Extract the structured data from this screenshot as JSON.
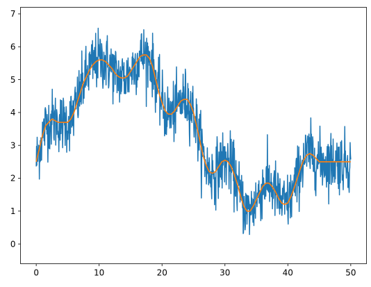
{
  "chart_data": {
    "type": "line",
    "title": "",
    "xlabel": "",
    "ylabel": "",
    "xlim": [
      -2.5,
      52.5
    ],
    "ylim": [
      -0.6,
      7.2
    ],
    "x_ticks": [
      0,
      10,
      20,
      30,
      40,
      50
    ],
    "y_ticks": [
      0,
      1,
      2,
      3,
      4,
      5,
      6,
      7
    ],
    "x_tick_labels": [
      "0",
      "10",
      "20",
      "30",
      "40",
      "50"
    ],
    "y_tick_labels": [
      "0",
      "1",
      "2",
      "3",
      "4",
      "5",
      "6",
      "7"
    ],
    "grid": false,
    "legend": "none",
    "series": [
      {
        "color": "#1f77b4",
        "style": "noisy",
        "x": [
          0,
          0.5,
          1,
          1.5,
          2,
          2.5,
          3,
          3.5,
          4,
          4.5,
          5,
          5.5,
          6,
          6.5,
          7,
          7.5,
          8,
          8.5,
          9,
          9.5,
          10,
          10.5,
          11,
          11.5,
          12,
          12.5,
          13,
          13.5,
          14,
          14.5,
          15,
          15.5,
          16,
          16.5,
          17,
          17.5,
          18,
          18.5,
          19,
          19.5,
          20,
          20.5,
          21,
          21.5,
          22,
          22.5,
          23,
          23.5,
          24,
          24.5,
          25,
          25.5,
          26,
          26.5,
          27,
          27.5,
          28,
          28.5,
          29,
          29.5,
          30,
          30.5,
          31,
          31.5,
          32,
          32.5,
          33,
          33.5,
          34,
          34.5,
          35,
          35.5,
          36,
          36.5,
          37,
          37.5,
          38,
          38.5,
          39,
          39.5,
          40,
          40.5,
          41,
          41.5,
          42,
          42.5,
          43,
          43.5,
          44,
          44.5,
          45,
          45.5,
          46,
          46.5,
          47,
          47.5,
          48,
          48.5,
          49,
          49.5,
          50
        ],
        "y": [
          2.5,
          2.9,
          3.3,
          3.6,
          3.7,
          3.8,
          3.75,
          3.7,
          3.7,
          3.7,
          3.7,
          3.8,
          4.0,
          4.3,
          4.6,
          4.9,
          5.1,
          5.3,
          5.45,
          5.55,
          5.6,
          5.6,
          5.55,
          5.45,
          5.35,
          5.2,
          5.1,
          5.05,
          5.05,
          5.1,
          5.25,
          5.4,
          5.55,
          5.7,
          5.75,
          5.75,
          5.65,
          5.4,
          5.0,
          4.6,
          4.3,
          4.05,
          3.95,
          3.95,
          4.05,
          4.2,
          4.35,
          4.4,
          4.4,
          4.25,
          4.0,
          3.6,
          3.15,
          2.7,
          2.4,
          2.2,
          2.15,
          2.2,
          2.35,
          2.5,
          2.55,
          2.5,
          2.35,
          2.1,
          1.8,
          1.45,
          1.15,
          1.0,
          1.0,
          1.15,
          1.35,
          1.55,
          1.75,
          1.85,
          1.85,
          1.75,
          1.6,
          1.4,
          1.25,
          1.2,
          1.25,
          1.45,
          1.7,
          2.0,
          2.3,
          2.55,
          2.7,
          2.75,
          2.7,
          2.6,
          2.5,
          2.5,
          2.5,
          2.5,
          2.5,
          2.5,
          2.5,
          2.5,
          2.5,
          2.5,
          2.5
        ]
      },
      {
        "color": "#ff7f0e",
        "style": "smooth",
        "x": [
          0,
          0.5,
          1,
          1.5,
          2,
          2.5,
          3,
          3.5,
          4,
          4.5,
          5,
          5.5,
          6,
          6.5,
          7,
          7.5,
          8,
          8.5,
          9,
          9.5,
          10,
          10.5,
          11,
          11.5,
          12,
          12.5,
          13,
          13.5,
          14,
          14.5,
          15,
          15.5,
          16,
          16.5,
          17,
          17.5,
          18,
          18.5,
          19,
          19.5,
          20,
          20.5,
          21,
          21.5,
          22,
          22.5,
          23,
          23.5,
          24,
          24.5,
          25,
          25.5,
          26,
          26.5,
          27,
          27.5,
          28,
          28.5,
          29,
          29.5,
          30,
          30.5,
          31,
          31.5,
          32,
          32.5,
          33,
          33.5,
          34,
          34.5,
          35,
          35.5,
          36,
          36.5,
          37,
          37.5,
          38,
          38.5,
          39,
          39.5,
          40,
          40.5,
          41,
          41.5,
          42,
          42.5,
          43,
          43.5,
          44,
          44.5,
          45,
          45.5,
          46,
          46.5,
          47,
          47.5,
          48,
          48.5,
          49,
          49.5,
          50
        ],
        "y": [
          2.5,
          2.9,
          3.3,
          3.6,
          3.7,
          3.8,
          3.75,
          3.7,
          3.7,
          3.7,
          3.7,
          3.8,
          4.0,
          4.3,
          4.6,
          4.9,
          5.1,
          5.3,
          5.45,
          5.55,
          5.6,
          5.6,
          5.55,
          5.45,
          5.35,
          5.2,
          5.1,
          5.05,
          5.05,
          5.1,
          5.25,
          5.4,
          5.55,
          5.7,
          5.75,
          5.75,
          5.65,
          5.4,
          5.0,
          4.6,
          4.3,
          4.05,
          3.95,
          3.95,
          4.05,
          4.2,
          4.35,
          4.4,
          4.4,
          4.25,
          4.0,
          3.6,
          3.15,
          2.7,
          2.4,
          2.2,
          2.15,
          2.2,
          2.35,
          2.5,
          2.55,
          2.5,
          2.35,
          2.1,
          1.8,
          1.45,
          1.15,
          1.0,
          1.0,
          1.15,
          1.35,
          1.55,
          1.75,
          1.85,
          1.85,
          1.75,
          1.6,
          1.4,
          1.25,
          1.2,
          1.25,
          1.45,
          1.7,
          2.0,
          2.3,
          2.55,
          2.7,
          2.75,
          2.7,
          2.6,
          2.5,
          2.5,
          2.5,
          2.5,
          2.5,
          2.5,
          2.5,
          2.5,
          2.5,
          2.5,
          2.5
        ]
      }
    ]
  }
}
